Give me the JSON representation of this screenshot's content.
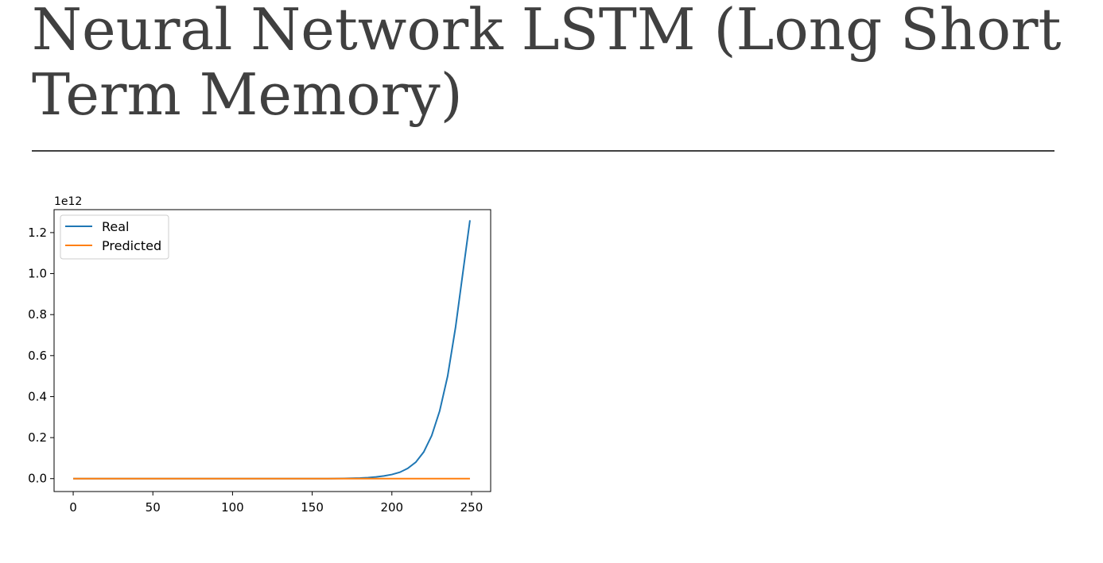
{
  "slide": {
    "title": "Neural Network LSTM (Long Short Term Memory)"
  },
  "chart_data": {
    "type": "line",
    "title": "",
    "xlabel": "",
    "ylabel": "",
    "y_offset_text": "1e12",
    "xlim": [
      -12,
      262
    ],
    "ylim": [
      -0.063,
      1.312
    ],
    "y_unit_multiplier": "1e12",
    "x_ticks": [
      0,
      50,
      100,
      150,
      200,
      250
    ],
    "y_ticks": [
      0.0,
      0.2,
      0.4,
      0.6,
      0.8,
      1.0,
      1.2
    ],
    "x_tick_labels": [
      "0",
      "50",
      "100",
      "150",
      "200",
      "250"
    ],
    "y_tick_labels": [
      "0.0",
      "0.2",
      "0.4",
      "0.6",
      "0.8",
      "1.0",
      "1.2"
    ],
    "grid": false,
    "legend_position": "upper left",
    "series": [
      {
        "name": "Real",
        "color": "#1f77b4",
        "x": [
          0,
          25,
          50,
          75,
          100,
          125,
          150,
          160,
          170,
          175,
          180,
          185,
          190,
          195,
          200,
          205,
          210,
          215,
          220,
          225,
          230,
          235,
          240,
          245,
          249
        ],
        "y": [
          0.0,
          0.0,
          0.0,
          0.0,
          0.0,
          0.0,
          0.0,
          0.0,
          0.001,
          0.002,
          0.003,
          0.005,
          0.008,
          0.013,
          0.02,
          0.031,
          0.05,
          0.08,
          0.13,
          0.21,
          0.33,
          0.5,
          0.74,
          1.03,
          1.26
        ]
      },
      {
        "name": "Predicted",
        "color": "#ff7f0e",
        "x": [
          0,
          50,
          100,
          150,
          200,
          249
        ],
        "y": [
          0.0,
          0.0,
          0.0,
          0.0,
          0.0,
          0.0
        ]
      }
    ]
  }
}
